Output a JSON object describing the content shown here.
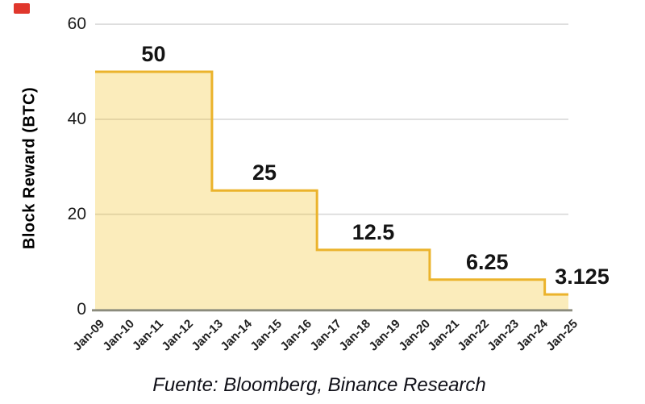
{
  "caption": "Fuente: Bloomberg, Binance Research",
  "icons": {
    "red_marker_color": "#E0372C"
  },
  "chart_data": {
    "type": "area",
    "subtype": "step",
    "title": "",
    "xlabel": "",
    "ylabel": "Block Reward (BTC)",
    "ylim": [
      0,
      60
    ],
    "yticks": [
      60,
      40,
      20,
      0
    ],
    "xticks": [
      "Jan-09",
      "Jan-10",
      "Jan-11",
      "Jan-12",
      "Jan-13",
      "Jan-14",
      "Jan-15",
      "Jan-16",
      "Jan-17",
      "Jan-18",
      "Jan-19",
      "Jan-20",
      "Jan-21",
      "Jan-22",
      "Jan-23",
      "Jan-24",
      "Jan-25"
    ],
    "grid": true,
    "legend": "none",
    "series": [
      {
        "name": "Block Reward (BTC)",
        "steps": [
          {
            "label": "50",
            "value": 50,
            "start_year": 2009.0,
            "end_year": 2012.95
          },
          {
            "label": "25",
            "value": 25,
            "start_year": 2012.95,
            "end_year": 2016.5
          },
          {
            "label": "12.5",
            "value": 12.5,
            "start_year": 2016.5,
            "end_year": 2020.31
          },
          {
            "label": "6.25",
            "value": 6.25,
            "start_year": 2020.31,
            "end_year": 2024.2
          },
          {
            "label": "3.125",
            "value": 3.125,
            "start_year": 2024.2,
            "end_year": 2025.0
          }
        ]
      }
    ],
    "colors": {
      "line": "#EBB32C",
      "fill": "rgba(240,185,11,0.28)",
      "grid": "#D8D8D8",
      "axis": "#8B8B7D",
      "text": "#1a1a1a"
    }
  }
}
